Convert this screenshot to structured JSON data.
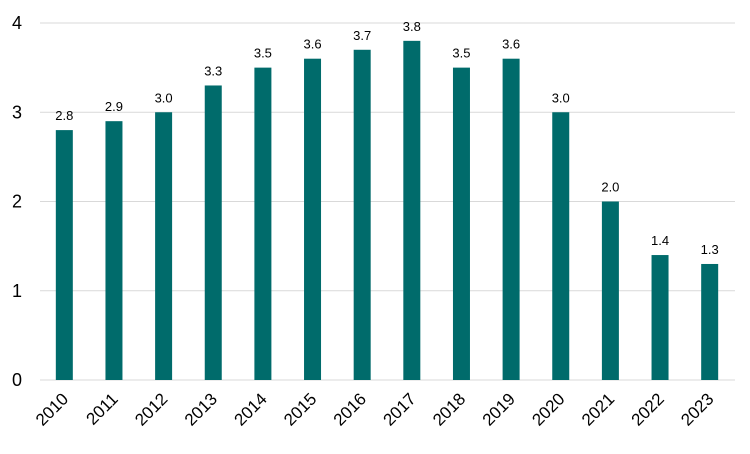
{
  "chart_data": {
    "type": "bar",
    "categories": [
      "2010",
      "2011",
      "2012",
      "2013",
      "2014",
      "2015",
      "2016",
      "2017",
      "2018",
      "2019",
      "2020",
      "2021",
      "2022",
      "2023"
    ],
    "values": [
      2.8,
      2.9,
      3.0,
      3.3,
      3.5,
      3.6,
      3.7,
      3.8,
      3.5,
      3.6,
      3.0,
      2.0,
      1.4,
      1.3
    ],
    "data_labels": [
      "2.8",
      "2.9",
      "3.0",
      "3.3",
      "3.5",
      "3.6",
      "3.7",
      "3.8",
      "3.5",
      "3.6",
      "3.0",
      "2.0",
      "1.4",
      "1.3"
    ],
    "yticks": [
      "0",
      "1",
      "2",
      "3",
      "4"
    ],
    "ylim": [
      0,
      4
    ],
    "grid": true,
    "legend": "none",
    "bar_color": "#006b6b"
  }
}
